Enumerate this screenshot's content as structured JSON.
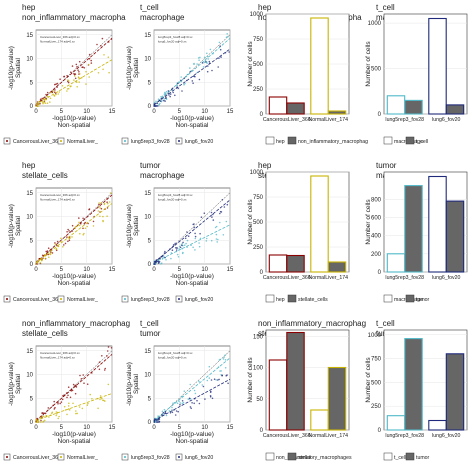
{
  "figure": {
    "rows": 3,
    "cols": 4,
    "colors": {
      "CancerousLiver_366": "#8b0000",
      "NormalLiver_174": "#c8b400",
      "lung5rep3_fov28": "#4fb8c8",
      "lung6_fov20": "#1f2a7a",
      "white_fill": "#ffffff",
      "gray_fill": "#666666",
      "panel_border": "#333333",
      "grid": "#e6e6e6"
    }
  },
  "chart_data": [
    {
      "type": "scatter",
      "title": [
        "hep",
        "non_inflammatory_macropha"
      ],
      "xlabel": "-log10(p-value)\nNon-spatial",
      "ylabel": "-log10(p-value)\nSpatial",
      "xlim": [
        0,
        15
      ],
      "ylim": [
        0,
        16
      ],
      "xticks": [
        0,
        5,
        10,
        15
      ],
      "yticks": [
        0,
        5,
        10,
        15
      ],
      "palette": [
        "CancerousLiver_366",
        "NormalLiver_174"
      ],
      "annotation": [
        "CancerousLiver_366 adj=0.xx",
        "NormalLiver_174 adj=0.xx"
      ],
      "legend": [
        {
          "label": "CancerousLiver_366",
          "style": "white"
        },
        {
          "label": "NormalLiver_",
          "style": "white"
        }
      ],
      "series": [
        {
          "name": "CancerousLiver_366",
          "slope": 0.95,
          "color": "CancerousLiver_366"
        },
        {
          "name": "NormalLiver_174",
          "slope": 0.65,
          "color": "NormalLiver_174"
        }
      ]
    },
    {
      "type": "scatter",
      "title": [
        "t_cell",
        "macrophage"
      ],
      "xlabel": "-log10(p-value)\nNon-spatial",
      "ylabel": "-log10(p-value)\nSpatial",
      "xlim": [
        0,
        15
      ],
      "ylim": [
        0,
        16
      ],
      "xticks": [
        0,
        5,
        10,
        15
      ],
      "yticks": [
        0,
        5,
        10,
        15
      ],
      "palette": [
        "lung5rep3_fov28",
        "lung6_fov20"
      ],
      "annotation": [
        "lung5rep3_fov28 adj=0.xx",
        "lung6_fov20 adj=0.xx"
      ],
      "legend": [
        {
          "label": "lung5rep3_fov28",
          "style": "white"
        },
        {
          "label": "lung6_fov20",
          "style": "white"
        }
      ],
      "series": [
        {
          "name": "lung5rep3_fov28",
          "slope": 0.95,
          "color": "lung5rep3_fov28"
        },
        {
          "name": "lung6_fov20",
          "slope": 0.8,
          "color": "lung6_fov20"
        }
      ]
    },
    {
      "type": "bar",
      "title": [
        "hep",
        "non_inflammatory_macropha"
      ],
      "ylabel": "Number of cells",
      "ylim": [
        0,
        1000
      ],
      "yticks": [
        0,
        250,
        500,
        750,
        1000
      ],
      "categories": [
        "CancerousLiver_366",
        "NormalLiver_174"
      ],
      "bar_colors": [
        "CancerousLiver_366",
        "NormalLiver_174"
      ],
      "series": [
        {
          "name": "hep",
          "fill": "white",
          "values": [
            170,
            960
          ]
        },
        {
          "name": "non_inflammatory_macrophag",
          "fill": "gray",
          "values": [
            110,
            30
          ]
        }
      ],
      "legend": [
        {
          "label": "hep",
          "style": "white"
        },
        {
          "label": "non_inflammatory_macrophag",
          "style": "gray"
        }
      ]
    },
    {
      "type": "bar",
      "title": [
        "t_cell",
        "macrophage"
      ],
      "ylabel": "Number of cells",
      "ylim": [
        0,
        1100
      ],
      "yticks": [
        0,
        500,
        1000
      ],
      "categories": [
        "lung5rep3_fov28",
        "lung6_fov20"
      ],
      "bar_colors": [
        "lung5rep3_fov28",
        "lung6_fov20"
      ],
      "series": [
        {
          "name": "macrophage",
          "fill": "white",
          "values": [
            200,
            1050
          ]
        },
        {
          "name": "t_cell",
          "fill": "gray",
          "values": [
            150,
            100
          ]
        }
      ],
      "legend": [
        {
          "label": "macrophage",
          "style": "white"
        },
        {
          "label": "t_cell",
          "style": "gray"
        }
      ]
    },
    {
      "type": "scatter",
      "title": [
        "hep",
        "stellate_cells"
      ],
      "xlabel": "-log10(p-value)\nNon-spatial",
      "ylabel": "-log10(p-value)\nSpatial",
      "xlim": [
        0,
        15
      ],
      "ylim": [
        0,
        16
      ],
      "xticks": [
        0,
        5,
        10,
        15
      ],
      "yticks": [
        0,
        5,
        10,
        15
      ],
      "palette": [
        "CancerousLiver_366",
        "NormalLiver_174"
      ],
      "annotation": [
        "CancerousLiver_366 adj=0.xx",
        "NormalLiver_174 adj=0.xx"
      ],
      "legend": [
        {
          "label": "CancerousLiver_366",
          "style": "white"
        },
        {
          "label": "NormalLiver_",
          "style": "white"
        }
      ],
      "series": [
        {
          "name": "CancerousLiver_366",
          "slope": 0.97,
          "color": "CancerousLiver_366"
        },
        {
          "name": "NormalLiver_174",
          "slope": 0.85,
          "color": "NormalLiver_174"
        }
      ]
    },
    {
      "type": "scatter",
      "title": [
        "tumor",
        "macrophage"
      ],
      "xlabel": "-log10(p-value)\nNon-spatial",
      "ylabel": "-log10(p-value)\nSpatial",
      "xlim": [
        0,
        15
      ],
      "ylim": [
        0,
        16
      ],
      "xticks": [
        0,
        5,
        10,
        15
      ],
      "yticks": [
        0,
        5,
        10,
        15
      ],
      "palette": [
        "lung5rep3_fov28",
        "lung6_fov20"
      ],
      "annotation": [
        "lung5rep3_fov28 adj=0.xx",
        "lung6_fov20 adj=0.xx"
      ],
      "legend": [
        {
          "label": "lung5rep3_fov28",
          "style": "white"
        },
        {
          "label": "lung6_fov20",
          "style": "white"
        }
      ],
      "series": [
        {
          "name": "lung5rep3_fov28",
          "slope": 0.55,
          "color": "lung5rep3_fov28"
        },
        {
          "name": "lung6_fov20",
          "slope": 0.9,
          "color": "lung6_fov20"
        }
      ]
    },
    {
      "type": "bar",
      "title": [
        "hep",
        "stellate_cells"
      ],
      "ylabel": "Number of cells",
      "ylim": [
        0,
        1000
      ],
      "yticks": [
        0,
        250,
        500,
        750,
        1000
      ],
      "categories": [
        "CancerousLiver_366",
        "NormalLiver_174"
      ],
      "bar_colors": [
        "CancerousLiver_366",
        "NormalLiver_174"
      ],
      "series": [
        {
          "name": "hep",
          "fill": "white",
          "values": [
            170,
            960
          ]
        },
        {
          "name": "stellate_cells",
          "fill": "gray",
          "values": [
            165,
            100
          ]
        }
      ],
      "legend": [
        {
          "label": "hep",
          "style": "white"
        },
        {
          "label": "stellate_cells",
          "style": "gray"
        }
      ]
    },
    {
      "type": "bar",
      "title": [
        "tumor",
        "macrophage"
      ],
      "ylabel": "Number of cells",
      "ylim": [
        0,
        1100
      ],
      "yticks": [
        0,
        200,
        400,
        600,
        800
      ],
      "categories": [
        "lung5rep3_fov28",
        "lung6_fov20"
      ],
      "bar_colors": [
        "lung5rep3_fov28",
        "lung6_fov20"
      ],
      "series": [
        {
          "name": "macrophage",
          "fill": "white",
          "values": [
            200,
            1050
          ]
        },
        {
          "name": "tumor",
          "fill": "gray",
          "values": [
            950,
            780
          ]
        }
      ],
      "legend": [
        {
          "label": "macrophage",
          "style": "white"
        },
        {
          "label": "tumor",
          "style": "gray"
        }
      ]
    },
    {
      "type": "scatter",
      "title": [
        "non_inflammatory_macrophag",
        "stellate_cells"
      ],
      "xlabel": "-log10(p-value)\nNon-spatial",
      "ylabel": "-log10(p-value)\nSpatial",
      "xlim": [
        0,
        15
      ],
      "ylim": [
        0,
        16
      ],
      "xticks": [
        0,
        5,
        10,
        15
      ],
      "yticks": [
        0,
        5,
        10,
        15
      ],
      "palette": [
        "CancerousLiver_366",
        "NormalLiver_174"
      ],
      "annotation": [
        "CancerousLiver_366 adj=0.xx",
        "NormalLiver_174 adj=0.xx"
      ],
      "legend": [
        {
          "label": "CancerousLiver_366",
          "style": "white"
        },
        {
          "label": "NormalLiver_",
          "style": "white"
        }
      ],
      "series": [
        {
          "name": "CancerousLiver_366",
          "slope": 0.95,
          "color": "CancerousLiver_366"
        },
        {
          "name": "NormalLiver_174",
          "slope": 0.4,
          "color": "NormalLiver_174"
        }
      ]
    },
    {
      "type": "scatter",
      "title": [
        "t_cell",
        "tumor"
      ],
      "xlabel": "-log10(p-value)\nNon-spatial",
      "ylabel": "-log10(p-value)\nSpatial",
      "xlim": [
        0,
        15
      ],
      "ylim": [
        0,
        16
      ],
      "xticks": [
        0,
        5,
        10,
        15
      ],
      "yticks": [
        0,
        5,
        10,
        15
      ],
      "palette": [
        "lung5rep3_fov28",
        "lung6_fov20"
      ],
      "annotation": [
        "lung5rep3_fov28 adj=0.xx",
        "lung6_fov20 adj=0.xx"
      ],
      "legend": [
        {
          "label": "lung5rep3_fov28",
          "style": "white"
        },
        {
          "label": "lung6_fov20",
          "style": "white"
        }
      ],
      "series": [
        {
          "name": "lung5rep3_fov28",
          "slope": 0.9,
          "color": "lung5rep3_fov28"
        },
        {
          "name": "lung6_fov20",
          "slope": 0.6,
          "color": "lung6_fov20"
        }
      ]
    },
    {
      "type": "bar",
      "title": [
        "non_inflammatory_macrophag",
        "stellate_cells"
      ],
      "ylabel": "Number of cells",
      "ylim": [
        0,
        160
      ],
      "yticks": [
        0,
        50,
        100,
        150
      ],
      "categories": [
        "CancerousLiver_366",
        "NormalLiver_174"
      ],
      "bar_colors": [
        "CancerousLiver_366",
        "NormalLiver_174"
      ],
      "series": [
        {
          "name": "non_inflammatory_macrophages",
          "fill": "white",
          "values": [
            112,
            32
          ]
        },
        {
          "name": "stellat",
          "fill": "gray",
          "values": [
            156,
            100
          ]
        }
      ],
      "legend": [
        {
          "label": "non_inflammatory_macrophages",
          "style": "white"
        },
        {
          "label": "stellat",
          "style": "gray"
        }
      ]
    },
    {
      "type": "bar",
      "title": [
        "t_cell",
        "tumor"
      ],
      "ylabel": "Number of cells",
      "ylim": [
        0,
        1050
      ],
      "yticks": [
        0,
        250,
        500,
        750,
        1000
      ],
      "categories": [
        "lung5rep3_fov28",
        "lung6_fov20"
      ],
      "bar_colors": [
        "lung5rep3_fov28",
        "lung6_fov20"
      ],
      "series": [
        {
          "name": "t_cell",
          "fill": "white",
          "values": [
            150,
            100
          ]
        },
        {
          "name": "tumor",
          "fill": "gray",
          "values": [
            960,
            800
          ]
        }
      ],
      "legend": [
        {
          "label": "t_cell",
          "style": "white"
        },
        {
          "label": "tumor",
          "style": "gray"
        }
      ]
    }
  ]
}
